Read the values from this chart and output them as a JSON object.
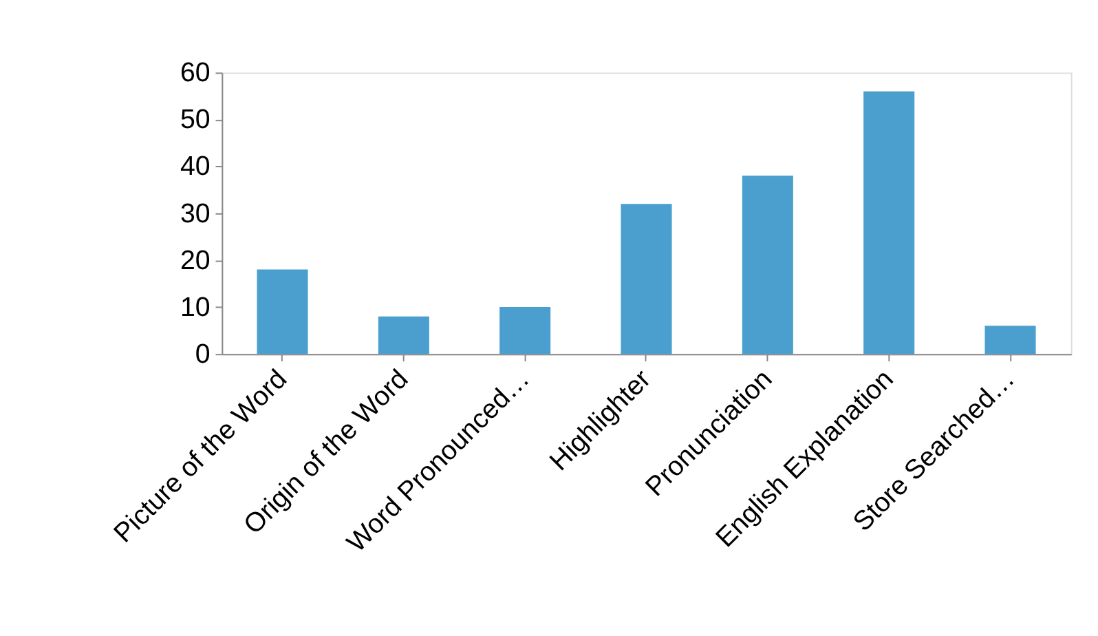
{
  "chart_data": {
    "type": "bar",
    "categories": [
      "Picture of the Word",
      "Origin of the Word",
      "Word Pronounced…",
      "Highlighter",
      "Pronunciation",
      "English Explanation",
      "Store Searched…"
    ],
    "values": [
      18,
      8,
      10,
      32,
      38,
      56,
      6
    ],
    "color": "#4a9fcf",
    "ylim": [
      0,
      60
    ],
    "yticks": [
      0,
      10,
      20,
      30,
      40,
      50,
      60
    ],
    "grid": false
  }
}
